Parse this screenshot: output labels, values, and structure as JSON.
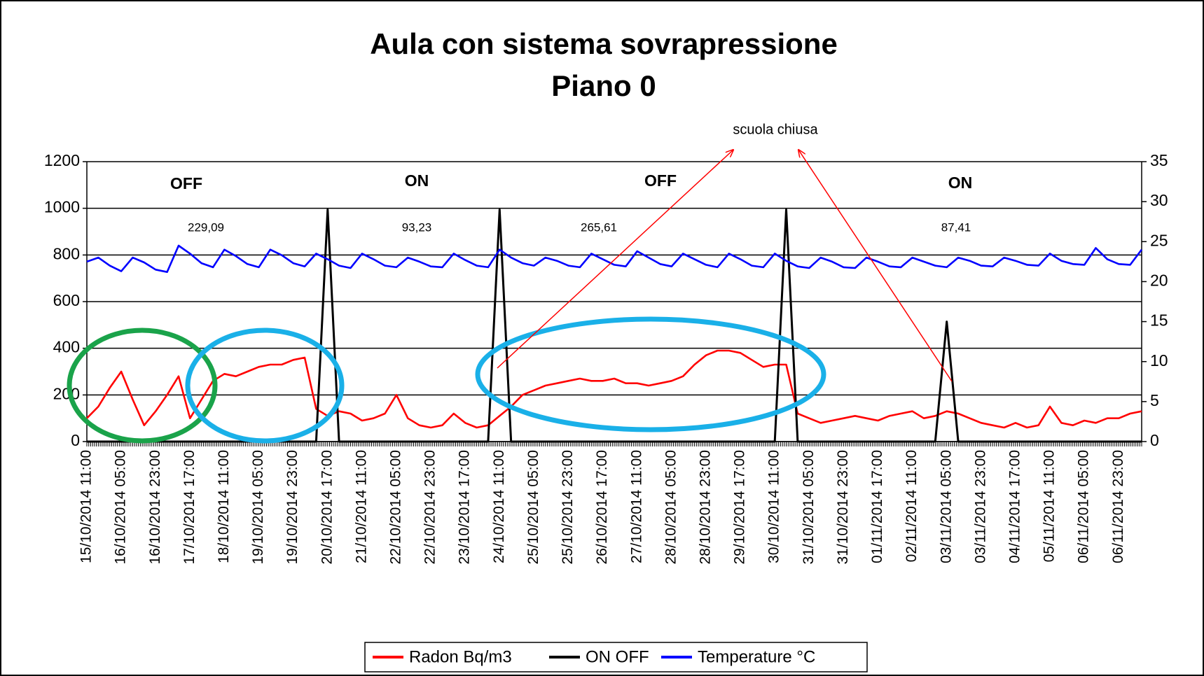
{
  "chart_data": {
    "type": "line",
    "title": "Aula con sistema sovrapressione",
    "subtitle": "Piano 0",
    "annotations": [
      "OFF",
      "ON",
      "OFF",
      "ON",
      "229,09",
      "93,23",
      "265,61",
      "87,41",
      "scuola chiusa"
    ],
    "categories": [
      "15/10/2014 11:00",
      null,
      null,
      "16/10/2014 05:00",
      null,
      null,
      "16/10/2014 23:00",
      null,
      null,
      "17/10/2014 17:00",
      null,
      null,
      "18/10/2014 11:00",
      null,
      null,
      "19/10/2014 05:00",
      null,
      null,
      "19/10/2014 23:00",
      null,
      null,
      "20/10/2014 17:00",
      null,
      null,
      "21/10/2014 11:00",
      null,
      null,
      "22/10/2014 05:00",
      null,
      null,
      "22/10/2014 23:00",
      null,
      null,
      "23/10/2014 17:00",
      null,
      null,
      "24/10/2014 11:00",
      null,
      null,
      "25/10/2014 05:00",
      null,
      null,
      "25/10/2014 23:00",
      null,
      null,
      "26/10/2014 17:00",
      null,
      null,
      "27/10/2014 11:00",
      null,
      null,
      "28/10/2014 05:00",
      null,
      null,
      "28/10/2014 23:00",
      null,
      null,
      "29/10/2014 17:00",
      null,
      null,
      "30/10/2014 11:00",
      null,
      null,
      "31/10/2014 05:00",
      null,
      null,
      "31/10/2014 23:00",
      null,
      null,
      "01/11/2014 17:00",
      null,
      null,
      "02/11/2014 11:00",
      null,
      null,
      "03/11/2014 05:00",
      null,
      null,
      "03/11/2014 23:00",
      null,
      null,
      "04/11/2014 17:00",
      null,
      null,
      "05/11/2014 11:00",
      null,
      null,
      "06/11/2014 05:00",
      null,
      null,
      "06/11/2014 23:00",
      null,
      null
    ],
    "series": [
      {
        "name": "Radon Bq/m3",
        "color": "#ff0000",
        "axis": "y",
        "values": [
          100,
          150,
          230,
          300,
          180,
          70,
          130,
          200,
          280,
          100,
          180,
          260,
          290,
          280,
          300,
          320,
          330,
          330,
          350,
          360,
          140,
          110,
          130,
          120,
          90,
          100,
          120,
          200,
          100,
          70,
          60,
          70,
          120,
          80,
          60,
          70,
          110,
          150,
          200,
          220,
          240,
          250,
          260,
          270,
          260,
          260,
          270,
          250,
          250,
          240,
          250,
          260,
          280,
          330,
          370,
          390,
          390,
          380,
          350,
          320,
          330,
          330,
          120,
          100,
          80,
          90,
          100,
          110,
          100,
          90,
          110,
          120,
          130,
          100,
          110,
          130,
          120,
          100,
          80,
          70,
          60,
          80,
          60,
          70,
          150,
          80,
          70,
          90,
          80,
          100,
          100,
          120,
          130
        ]
      },
      {
        "name": "ON OFF",
        "color": "#000000",
        "axis": "y2",
        "values": [
          0,
          0,
          0,
          0,
          0,
          0,
          0,
          0,
          0,
          0,
          0,
          0,
          0,
          0,
          0,
          0,
          0,
          0,
          0,
          0,
          0,
          29,
          0,
          0,
          0,
          0,
          0,
          0,
          0,
          0,
          0,
          0,
          0,
          0,
          0,
          0,
          29,
          0,
          0,
          0,
          0,
          0,
          0,
          0,
          0,
          0,
          0,
          0,
          0,
          0,
          0,
          0,
          0,
          0,
          0,
          0,
          0,
          0,
          0,
          0,
          0,
          29,
          0,
          0,
          0,
          0,
          0,
          0,
          0,
          0,
          0,
          0,
          0,
          0,
          0,
          15,
          0,
          0,
          0,
          0,
          0,
          0,
          0,
          0,
          0,
          0,
          0,
          0,
          0,
          0,
          0,
          0,
          0
        ]
      },
      {
        "name": "Temperature °C",
        "color": "#0000ff",
        "axis": "y2",
        "values": [
          22.5,
          23,
          22,
          21.3,
          23,
          22.4,
          21.5,
          21.2,
          24.5,
          23.5,
          22.3,
          21.8,
          24,
          23.2,
          22.2,
          21.8,
          24,
          23.3,
          22.3,
          21.9,
          23.5,
          22.8,
          22,
          21.7,
          23.5,
          22.8,
          22,
          21.8,
          23,
          22.5,
          21.9,
          21.8,
          23.5,
          22.7,
          22,
          21.8,
          24,
          23,
          22.3,
          22,
          23,
          22.6,
          22,
          21.8,
          23.5,
          22.8,
          22.1,
          21.9,
          23.8,
          23,
          22.2,
          21.9,
          23.5,
          22.8,
          22.1,
          21.8,
          23.5,
          22.8,
          22,
          21.8,
          23.5,
          22.6,
          21.9,
          21.7,
          23,
          22.5,
          21.8,
          21.7,
          23,
          22.5,
          21.9,
          21.8,
          23,
          22.5,
          22,
          21.8,
          23,
          22.6,
          22,
          21.9,
          23,
          22.6,
          22.1,
          22,
          23.5,
          22.6,
          22.2,
          22.1,
          24.2,
          22.8,
          22.2,
          22.1,
          24
        ]
      }
    ],
    "ylim": [
      0,
      1200
    ],
    "yticks": [
      0,
      200,
      400,
      600,
      800,
      1000,
      1200
    ],
    "y2lim": [
      0,
      35
    ],
    "y2ticks": [
      0,
      5,
      10,
      15,
      20,
      25,
      30,
      35
    ],
    "grid": true
  }
}
